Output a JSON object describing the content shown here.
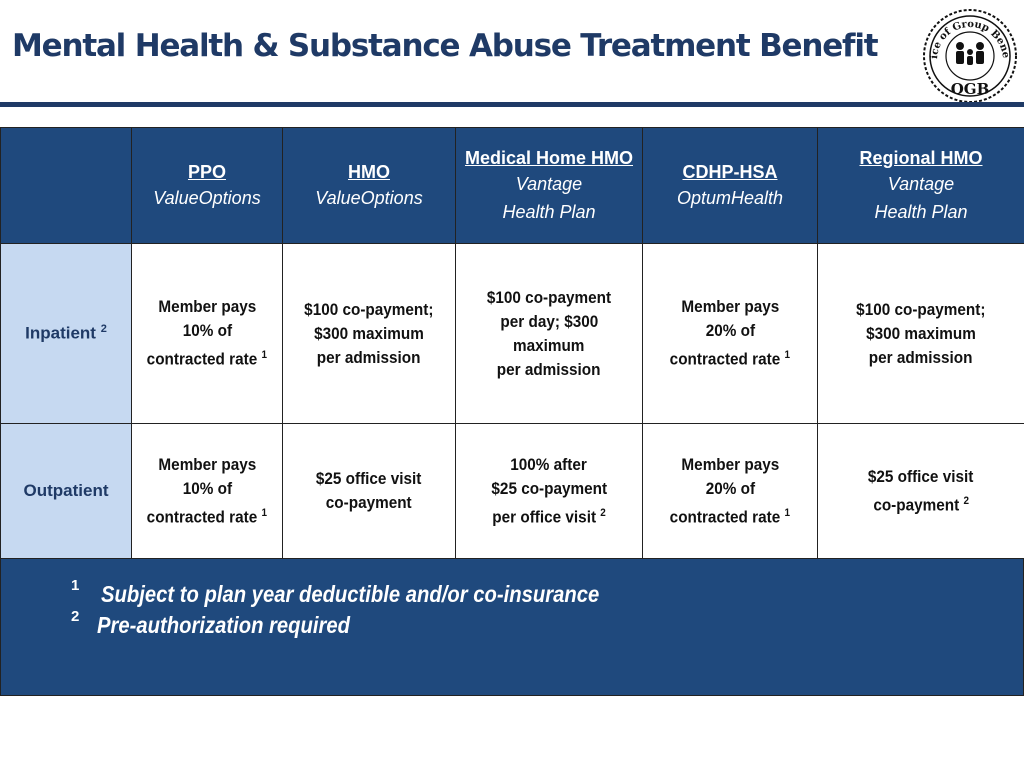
{
  "title": "Mental Health & Substance Abuse Treatment Benefit",
  "logo": {
    "icon": "ogb-seal-icon",
    "ring_text": "Office of Group Benefits",
    "initials": "OGB"
  },
  "columns": [
    {
      "plan": "PPO",
      "vendor_lines": [
        "ValueOptions"
      ]
    },
    {
      "plan": "HMO",
      "vendor_lines": [
        "ValueOptions"
      ]
    },
    {
      "plan": "Medical Home HMO",
      "vendor_lines": [
        "Vantage",
        "Health Plan"
      ]
    },
    {
      "plan": "CDHP-HSA",
      "vendor_lines": [
        "OptumHealth"
      ]
    },
    {
      "plan": "Regional HMO",
      "vendor_lines": [
        "Vantage",
        "Health Plan"
      ]
    }
  ],
  "rows": [
    {
      "label": "Inpatient",
      "label_sup": "2",
      "cells": [
        {
          "lines": [
            "Member pays",
            "10% of",
            "contracted rate"
          ],
          "sup": "1"
        },
        {
          "lines": [
            "$100 co-payment;",
            "$300 maximum",
            "per admission"
          ],
          "sup": ""
        },
        {
          "lines": [
            "$100 co-payment",
            "per day; $300",
            "maximum",
            "per admission"
          ],
          "sup": ""
        },
        {
          "lines": [
            "Member pays",
            "20% of",
            "contracted rate"
          ],
          "sup": "1"
        },
        {
          "lines": [
            "$100 co-payment;",
            "$300 maximum",
            "per admission"
          ],
          "sup": ""
        }
      ]
    },
    {
      "label": "Outpatient",
      "label_sup": "",
      "cells": [
        {
          "lines": [
            "Member pays",
            "10% of",
            "contracted rate"
          ],
          "sup": "1"
        },
        {
          "lines": [
            "$25 office visit",
            "co-payment"
          ],
          "sup": ""
        },
        {
          "lines": [
            "100% after",
            "$25 co-payment",
            "per office visit"
          ],
          "sup": "2"
        },
        {
          "lines": [
            "Member pays",
            "20% of",
            "contracted rate"
          ],
          "sup": "1"
        },
        {
          "lines": [
            "$25 office visit",
            "co-payment"
          ],
          "sup": "2"
        }
      ]
    }
  ],
  "footnotes": [
    {
      "num": "1",
      "text": "Subject to plan year deductible and/or co-insurance"
    },
    {
      "num": "2",
      "text": "Pre-authorization required"
    }
  ],
  "colors": {
    "header_bg": "#1f497d",
    "title": "#1f3a66",
    "row_label_bg": "#c6d9f1"
  }
}
